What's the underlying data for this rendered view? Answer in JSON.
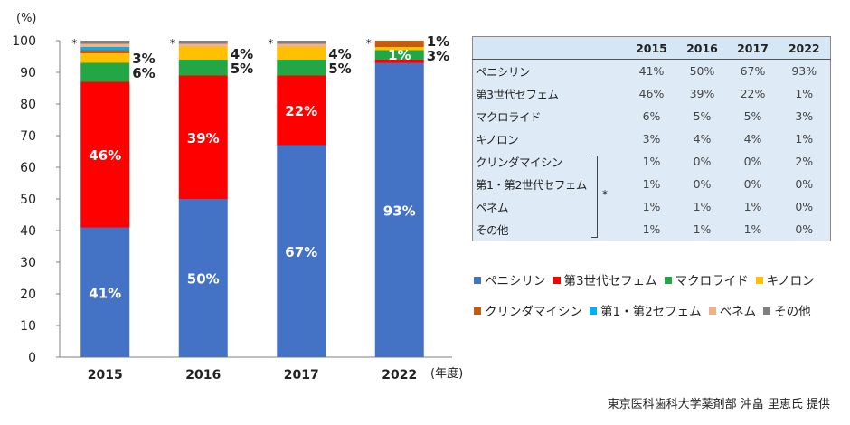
{
  "chart_data": {
    "type": "bar",
    "stacked": true,
    "categories": [
      "2015",
      "2016",
      "2017",
      "2022"
    ],
    "ylabel": "(%)",
    "xlabel": "(年度)",
    "ylim": [
      0,
      100
    ],
    "yticks": [
      0,
      10,
      20,
      30,
      40,
      50,
      60,
      70,
      80,
      90,
      100
    ],
    "grid": false,
    "legend_position": "bottom-right",
    "series": [
      {
        "name": "ペニシリン",
        "color": "#4472c4",
        "values": [
          41,
          50,
          67,
          93
        ]
      },
      {
        "name": "第3世代セフェム",
        "color": "#ff0000",
        "values": [
          46,
          39,
          22,
          1
        ]
      },
      {
        "name": "マクロライド",
        "color": "#22a744",
        "values": [
          6,
          5,
          5,
          3
        ]
      },
      {
        "name": "キノロン",
        "color": "#ffc000",
        "values": [
          3,
          4,
          4,
          1
        ]
      },
      {
        "name": "クリンダマイシン",
        "color": "#c55a11",
        "values": [
          1,
          0,
          0,
          2
        ]
      },
      {
        "name": "第1・第2セフェム",
        "color": "#00b0f0",
        "values": [
          1,
          0,
          0,
          0
        ]
      },
      {
        "name": "ペネム",
        "color": "#f4b183",
        "values": [
          1,
          1,
          1,
          0
        ]
      },
      {
        "name": "その他",
        "color": "#808080",
        "values": [
          1,
          1,
          1,
          0
        ]
      }
    ],
    "bar_labels": [
      {
        "category": "2015",
        "series": 0,
        "text": "41%"
      },
      {
        "category": "2015",
        "series": 1,
        "text": "46%"
      },
      {
        "category": "2015",
        "series": 2,
        "text": "6%"
      },
      {
        "category": "2015",
        "series": 3,
        "text": "3%"
      },
      {
        "category": "2016",
        "series": 0,
        "text": "50%"
      },
      {
        "category": "2016",
        "series": 1,
        "text": "39%"
      },
      {
        "category": "2016",
        "series": 2,
        "text": "5%"
      },
      {
        "category": "2016",
        "series": 3,
        "text": "4%"
      },
      {
        "category": "2017",
        "series": 0,
        "text": "67%"
      },
      {
        "category": "2017",
        "series": 1,
        "text": "22%"
      },
      {
        "category": "2017",
        "series": 2,
        "text": "5%"
      },
      {
        "category": "2017",
        "series": 3,
        "text": "4%"
      },
      {
        "category": "2022",
        "series": 0,
        "text": "93%"
      },
      {
        "category": "2022",
        "series": 1,
        "text": "1%"
      },
      {
        "category": "2022",
        "series": 2,
        "text": "3%"
      },
      {
        "category": "2022",
        "series": 3,
        "text": "1%"
      }
    ],
    "asterisk": "*"
  },
  "table": {
    "headers": [
      "2015",
      "2016",
      "2017",
      "2022"
    ],
    "rows": [
      {
        "label": "ペニシリン",
        "values": [
          "41%",
          "50%",
          "67%",
          "93%"
        ]
      },
      {
        "label": "第3世代セフェム",
        "values": [
          "46%",
          "39%",
          "22%",
          "1%"
        ]
      },
      {
        "label": "マクロライド",
        "values": [
          "6%",
          "5%",
          "5%",
          "3%"
        ]
      },
      {
        "label": "キノロン",
        "values": [
          "3%",
          "4%",
          "4%",
          "1%"
        ]
      },
      {
        "label": "クリンダマイシン",
        "values": [
          "1%",
          "0%",
          "0%",
          "2%"
        ]
      },
      {
        "label": "第1・第2世代セフェム",
        "values": [
          "1%",
          "0%",
          "0%",
          "0%"
        ]
      },
      {
        "label": "ペネム",
        "values": [
          "1%",
          "1%",
          "1%",
          "0%"
        ]
      },
      {
        "label": "その他",
        "values": [
          "1%",
          "1%",
          "1%",
          "0%"
        ]
      }
    ],
    "note_mark": "*"
  },
  "credit": "東京医科歯科大学薬剤部 沖畠 里恵氏 提供"
}
